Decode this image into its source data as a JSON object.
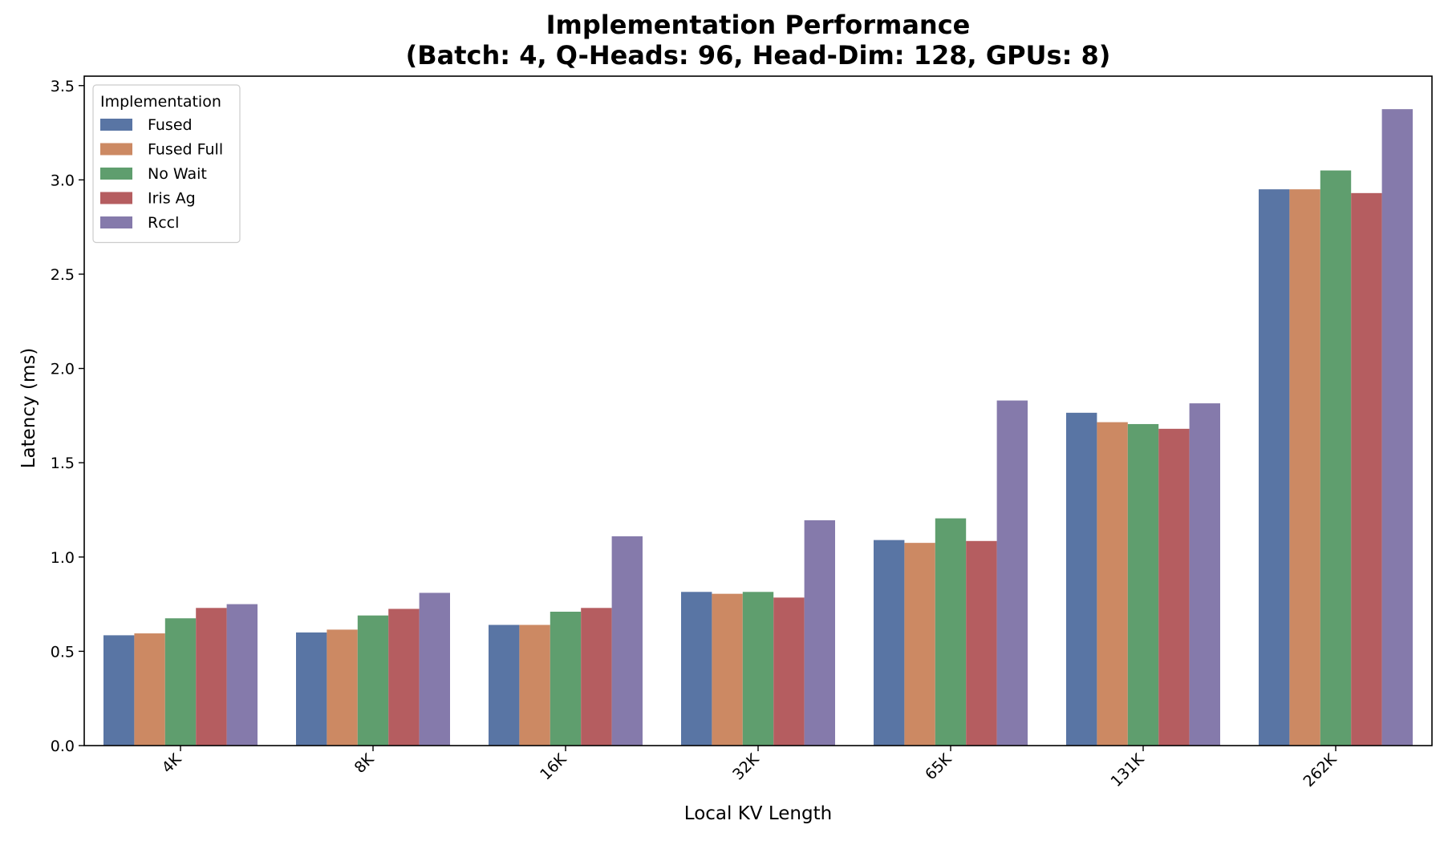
{
  "chart_data": {
    "type": "bar",
    "title_line1": "Implementation Performance",
    "title_line2": "(Batch: 4, Q-Heads: 96, Head-Dim: 128, GPUs: 8)",
    "xlabel": "Local KV Length",
    "ylabel": "Latency (ms)",
    "ylim": [
      0,
      3.55
    ],
    "yticks": [
      "0.0",
      "0.5",
      "1.0",
      "1.5",
      "2.0",
      "2.5",
      "3.0",
      "3.5"
    ],
    "categories": [
      "4K",
      "8K",
      "16K",
      "32K",
      "65K",
      "131K",
      "262K"
    ],
    "legend_title": "Implementation",
    "legend_position": "upper-left",
    "grid": false,
    "series": [
      {
        "name": "Fused",
        "color": "#5975a4",
        "values": [
          0.585,
          0.6,
          0.64,
          0.815,
          1.09,
          1.765,
          2.95
        ]
      },
      {
        "name": "Fused Full",
        "color": "#cc8963",
        "values": [
          0.595,
          0.615,
          0.64,
          0.805,
          1.075,
          1.715,
          2.95
        ]
      },
      {
        "name": "No Wait",
        "color": "#5f9e6e",
        "values": [
          0.675,
          0.69,
          0.71,
          0.815,
          1.205,
          1.705,
          3.05
        ]
      },
      {
        "name": "Iris Ag",
        "color": "#b55d60",
        "values": [
          0.73,
          0.725,
          0.73,
          0.785,
          1.085,
          1.68,
          2.93
        ]
      },
      {
        "name": "Rccl",
        "color": "#857aab",
        "values": [
          0.75,
          0.81,
          1.11,
          1.195,
          1.83,
          1.815,
          3.375
        ]
      }
    ]
  }
}
